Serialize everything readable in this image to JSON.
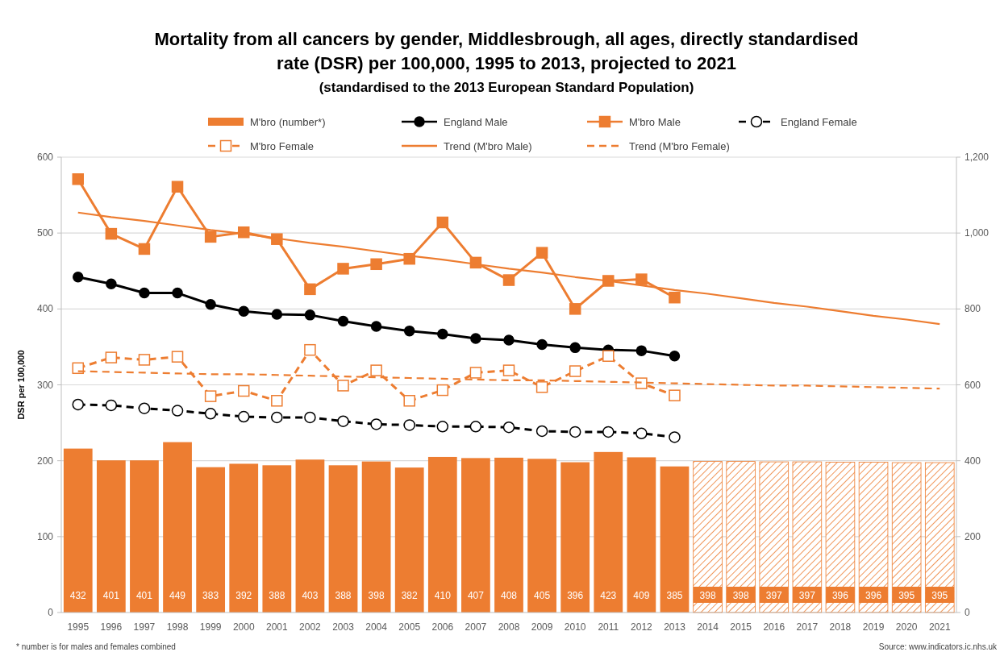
{
  "chart_data": {
    "type": "bar",
    "title": "Mortality from all cancers by gender, Middlesbrough, all ages, directly standardised\nrate (DSR) per 100,000, 1995 to 2013, projected to 2021",
    "subtitle": "(standardised to the 2013 European Standard Population)",
    "ylabel": "DSR per 100,000",
    "categories": [
      "1995",
      "1996",
      "1997",
      "1998",
      "1999",
      "2000",
      "2001",
      "2002",
      "2003",
      "2004",
      "2005",
      "2006",
      "2007",
      "2008",
      "2009",
      "2010",
      "2011",
      "2012",
      "2013",
      "2014",
      "2015",
      "2016",
      "2017",
      "2018",
      "2019",
      "2020",
      "2021"
    ],
    "series": [
      {
        "name": "M'bro (number*)",
        "axis": "y2",
        "color": "#ed7d31",
        "values": [
          432,
          401,
          401,
          449,
          383,
          392,
          388,
          403,
          388,
          398,
          382,
          410,
          407,
          408,
          405,
          396,
          423,
          409,
          385,
          null,
          null,
          null,
          null,
          null,
          null,
          null,
          null
        ],
        "value_labels": [
          "432",
          "401",
          "401",
          "449",
          "383",
          "392",
          "388",
          "403",
          "388",
          "398",
          "382",
          "410",
          "407",
          "408",
          "405",
          "396",
          "423",
          "409",
          "385",
          null,
          null,
          null,
          null,
          null,
          null,
          null,
          null
        ]
      },
      {
        "axis": "y2",
        "color": "#ed7d31",
        "values": [
          null,
          null,
          null,
          null,
          null,
          null,
          null,
          null,
          null,
          null,
          null,
          null,
          null,
          null,
          null,
          null,
          null,
          null,
          null,
          398,
          398,
          397,
          397,
          396,
          396,
          395,
          395
        ],
        "value_labels": [
          null,
          null,
          null,
          null,
          null,
          null,
          null,
          null,
          null,
          null,
          null,
          null,
          null,
          null,
          null,
          null,
          null,
          null,
          null,
          "398",
          "398",
          "397",
          "397",
          "396",
          "396",
          "395",
          "395"
        ]
      },
      {
        "name": "England Male",
        "type": "line",
        "color": "#000000",
        "marker": "circle",
        "line_style": "solid",
        "values": [
          442,
          433,
          421,
          421,
          406,
          397,
          393,
          392,
          384,
          377,
          371,
          367,
          361,
          359,
          353,
          349,
          346,
          345,
          338,
          null,
          null,
          null,
          null,
          null,
          null,
          null,
          null
        ]
      },
      {
        "name": "M'bro Male",
        "type": "line",
        "color": "#ed7d31",
        "marker": "square",
        "line_style": "solid",
        "values": [
          571,
          499,
          479,
          561,
          495,
          501,
          492,
          426,
          453,
          459,
          466,
          514,
          461,
          438,
          474,
          400,
          437,
          439,
          415,
          null,
          null,
          null,
          null,
          null,
          null,
          null,
          null
        ]
      },
      {
        "name": "England Female",
        "type": "line",
        "color": "#000000",
        "marker": "circle",
        "line_style": "dashed",
        "values": [
          274,
          273,
          269,
          266,
          262,
          258,
          257,
          257,
          252,
          248,
          247,
          245,
          245,
          244,
          239,
          238,
          238,
          236,
          231,
          null,
          null,
          null,
          null,
          null,
          null,
          null,
          null
        ]
      },
      {
        "name": "M'bro Female",
        "type": "line",
        "color": "#ed7d31",
        "marker": "square",
        "line_style": "dashed",
        "values": [
          322,
          336,
          333,
          337,
          285,
          292,
          279,
          346,
          299,
          319,
          279,
          293,
          316,
          319,
          297,
          318,
          338,
          302,
          286,
          null,
          null,
          null,
          null,
          null,
          null,
          null,
          null
        ]
      },
      {
        "name": "Trend (M'bro Male)",
        "type": "line",
        "color": "#ed7d31",
        "marker": "none",
        "line_style": "solid",
        "values": [
          527,
          521,
          516,
          510,
          504,
          499,
          493,
          487,
          482,
          476,
          470,
          465,
          459,
          453,
          448,
          442,
          437,
          431,
          425,
          420,
          414,
          408,
          403,
          397,
          391,
          386,
          380
        ]
      },
      {
        "name": "Trend (M'bro Female)",
        "type": "line",
        "color": "#ed7d31",
        "marker": "none",
        "line_style": "dashed",
        "values": [
          318,
          317,
          316,
          315,
          314,
          314,
          313,
          312,
          311,
          310,
          309,
          308,
          307,
          306,
          306,
          305,
          304,
          303,
          302,
          301,
          300,
          299,
          299,
          298,
          297,
          296,
          295
        ]
      }
    ],
    "ylim": [
      0,
      600
    ],
    "yticks": [
      0,
      100,
      200,
      300,
      400,
      500,
      600
    ],
    "y2lim": [
      0,
      1200
    ],
    "y2ticks": [
      0,
      {
        "value": 200,
        "label": "200"
      },
      {
        "value": 400,
        "label": "400"
      },
      {
        "value": 600,
        "label": "600"
      },
      {
        "value": 800,
        "label": "800"
      },
      {
        "value": 1000,
        "label": "1,000"
      },
      {
        "value": 1200,
        "label": "1,200"
      }
    ],
    "grid": "y",
    "legend": "top",
    "annotations": [
      "* number is for males and females combined",
      "Source: www.indicators.ic.nhs.uk"
    ]
  }
}
